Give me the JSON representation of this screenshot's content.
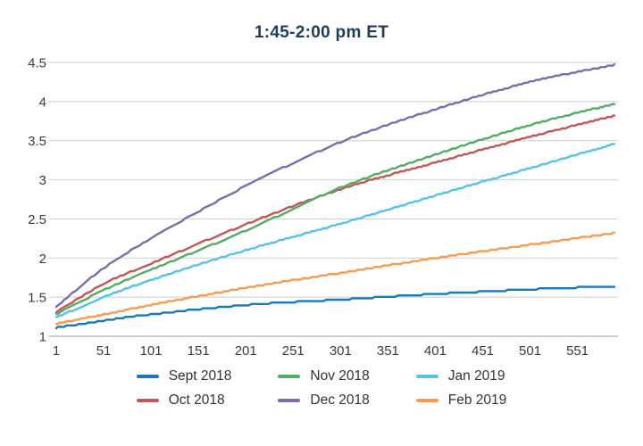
{
  "chart_data": {
    "type": "line",
    "title": "1:45-2:00 pm ET",
    "xlabel": "",
    "ylabel": "",
    "xlim": [
      1,
      590
    ],
    "ylim": [
      1,
      4.5
    ],
    "x_ticks": [
      1,
      51,
      101,
      151,
      201,
      251,
      301,
      351,
      401,
      451,
      501,
      551
    ],
    "y_ticks": [
      1,
      1.5,
      2,
      2.5,
      3,
      3.5,
      4,
      4.5
    ],
    "grid": "horizontal",
    "legend_position": "bottom",
    "x": [
      1,
      51,
      101,
      201,
      301,
      401,
      501,
      590
    ],
    "series": [
      {
        "name": "Sept 2018",
        "color": "#1779ba",
        "values": [
          1.11,
          1.2,
          1.28,
          1.4,
          1.47,
          1.54,
          1.6,
          1.64
        ]
      },
      {
        "name": "Oct 2018",
        "color": "#bf5856",
        "values": [
          1.31,
          1.67,
          1.93,
          2.43,
          2.88,
          3.22,
          3.55,
          3.82
        ]
      },
      {
        "name": "Nov 2018",
        "color": "#52ad63",
        "values": [
          1.28,
          1.59,
          1.85,
          2.35,
          2.9,
          3.32,
          3.7,
          3.97
        ]
      },
      {
        "name": "Dec 2018",
        "color": "#7e6bad",
        "values": [
          1.38,
          1.87,
          2.25,
          2.92,
          3.48,
          3.9,
          4.25,
          4.47
        ]
      },
      {
        "name": "Jan 2019",
        "color": "#56c2e8",
        "values": [
          1.24,
          1.5,
          1.72,
          2.1,
          2.44,
          2.8,
          3.15,
          3.46
        ]
      },
      {
        "name": "Feb 2019",
        "color": "#f59c51",
        "values": [
          1.16,
          1.28,
          1.4,
          1.62,
          1.81,
          2.0,
          2.17,
          2.32
        ]
      }
    ],
    "legend_rows": [
      [
        "Sept 2018",
        "Nov 2018",
        "Jan 2019"
      ],
      [
        "Oct 2018",
        "Dec 2018",
        "Feb 2019"
      ]
    ]
  },
  "colors": {
    "title": "#1d3c5f",
    "axis_labels": "#3b3b3b",
    "legend_text": "#333333",
    "gridline": "#cdcdcd",
    "axis_line": "#9a9a9a",
    "background": "#ffffff"
  }
}
